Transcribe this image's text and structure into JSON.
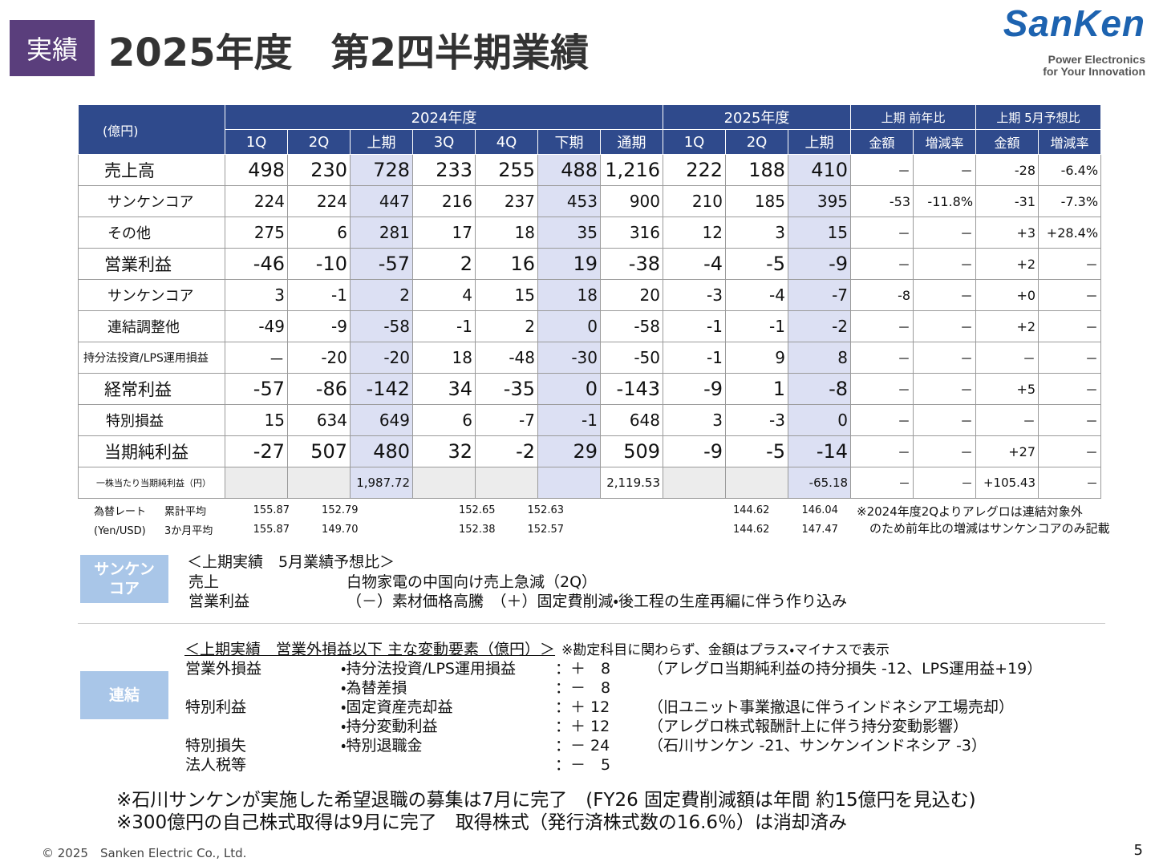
{
  "header": {
    "badge": "実績",
    "title": "2025年度　第2四半期業績",
    "logo": "SanKen",
    "tagline1": "Power Electronics",
    "tagline2": "for Your Innovation"
  },
  "table": {
    "unit": "(億円)",
    "groups": [
      "2024年度",
      "2025年度",
      "上期 前年比",
      "上期 5月予想比"
    ],
    "columns": [
      "1Q",
      "2Q",
      "上期",
      "3Q",
      "4Q",
      "下期",
      "通期",
      "1Q",
      "2Q",
      "上期",
      "金額",
      "増減率",
      "金額",
      "増減率"
    ],
    "rows": [
      {
        "label": "売上高",
        "level": "main",
        "cells": [
          "498",
          "230",
          "728",
          "233",
          "255",
          "488",
          "1,216",
          "222",
          "188",
          "410",
          "－",
          "－",
          "-28",
          "-6.4%"
        ]
      },
      {
        "label": "サンケンコア",
        "level": "sub",
        "cells": [
          "224",
          "224",
          "447",
          "216",
          "237",
          "453",
          "900",
          "210",
          "185",
          "395",
          "-53",
          "-11.8%",
          "-31",
          "-7.3%"
        ]
      },
      {
        "label": "その他",
        "level": "sub",
        "cells": [
          "275",
          "6",
          "281",
          "17",
          "18",
          "35",
          "316",
          "12",
          "3",
          "15",
          "－",
          "－",
          "+3",
          "+28.4%"
        ]
      },
      {
        "label": "営業利益",
        "level": "main",
        "cells": [
          "-46",
          "-10",
          "-57",
          "2",
          "16",
          "19",
          "-38",
          "-4",
          "-5",
          "-9",
          "－",
          "－",
          "+2",
          "－"
        ]
      },
      {
        "label": "サンケンコア",
        "level": "sub",
        "cells": [
          "3",
          "-1",
          "2",
          "4",
          "15",
          "18",
          "20",
          "-3",
          "-4",
          "-7",
          "-8",
          "－",
          "+0",
          "－"
        ]
      },
      {
        "label": "連結調整他",
        "level": "sub",
        "cells": [
          "-49",
          "-9",
          "-58",
          "-1",
          "2",
          "0",
          "-58",
          "-1",
          "-1",
          "-2",
          "－",
          "－",
          "+2",
          "－"
        ]
      },
      {
        "label": "持分法投資/LPS運用損益",
        "level": "small",
        "cells": [
          "－",
          "-20",
          "-20",
          "18",
          "-48",
          "-30",
          "-50",
          "-1",
          "9",
          "8",
          "－",
          "－",
          "－",
          "－"
        ]
      },
      {
        "label": "経常利益",
        "level": "main",
        "cells": [
          "-57",
          "-86",
          "-142",
          "34",
          "-35",
          "0",
          "-143",
          "-9",
          "1",
          "-8",
          "－",
          "－",
          "+5",
          "－"
        ]
      },
      {
        "label": "特別損益",
        "level": "mid",
        "cells": [
          "15",
          "634",
          "649",
          "6",
          "-7",
          "-1",
          "648",
          "3",
          "-3",
          "0",
          "－",
          "－",
          "－",
          "－"
        ]
      },
      {
        "label": "当期純利益",
        "level": "main",
        "cells": [
          "-27",
          "507",
          "480",
          "32",
          "-2",
          "29",
          "509",
          "-9",
          "-5",
          "-14",
          "－",
          "－",
          "+27",
          "－"
        ]
      },
      {
        "label": "一株当たり当期純利益（円）",
        "level": "eps",
        "cells": [
          null,
          null,
          "1,987.72",
          null,
          null,
          null,
          "2,119.53",
          null,
          null,
          "-65.18",
          "－",
          "－",
          "+105.43",
          "－"
        ]
      }
    ]
  },
  "fx": {
    "label1": "為替レート",
    "label2": "(Yen/USD)",
    "rows": [
      {
        "label": "累計平均",
        "cells": [
          "155.87",
          "152.79",
          null,
          "152.65",
          "152.63",
          null,
          null,
          "144.62",
          "146.04"
        ]
      },
      {
        "label": "3か月平均",
        "cells": [
          "155.87",
          "149.70",
          null,
          "152.38",
          "152.57",
          null,
          null,
          "144.62",
          "147.47"
        ]
      }
    ]
  },
  "table_note": [
    "※2024年度2Qよりアレグロは連結対象外",
    "のため前年比の増減はサンケンコアのみ記載"
  ],
  "core": {
    "tag": [
      "サンケン",
      "コア"
    ],
    "heading": "＜上期実績　5月業績予想比＞",
    "items": [
      {
        "label": "売上",
        "text": "白物家電の中国向け売上急減（2Q）"
      },
      {
        "label": "営業利益",
        "text": "（－）素材価格高騰　（＋）固定費削減・後工程の生産再編に伴う作り込み"
      }
    ]
  },
  "consolidated": {
    "tag": "連結",
    "heading": "＜上期実績　営業外損益以下 主な変動要素（億円）＞",
    "note": "※勘定科目に関わらず、金額はプラス・マイナスで表示",
    "rows": [
      {
        "category": "営業外損益",
        "item": "・持分法投資/LPS運用損益",
        "amount": "：＋　8",
        "detail": "（アレグロ当期純利益の持分損失 -12、LPS運用益+19）"
      },
      {
        "category": null,
        "item": "・為替差損",
        "amount": "：－　8",
        "detail": null
      },
      {
        "category": "特別利益",
        "item": "・固定資産売却益",
        "amount": "：＋ 12",
        "detail": "（旧ユニット事業撤退に伴うインドネシア工場売却）"
      },
      {
        "category": null,
        "item": "・持分変動利益",
        "amount": "：＋ 12",
        "detail": "（アレグロ株式報酬計上に伴う持分変動影響）"
      },
      {
        "category": "特別損失",
        "item": "・特別退職金",
        "amount": "：－ 24",
        "detail": "（石川サンケン -21、サンケンインドネシア -3）"
      },
      {
        "category": "法人税等",
        "item": null,
        "amount": "：－　5",
        "detail": null
      }
    ]
  },
  "footnotes": [
    "※石川サンケンが実施した希望退職の募集は7月に完了　(FY26 固定費削減額は年間 約15億円を見込む)",
    "※300億円の自己株式取得は9月に完了　取得株式（発行済株式数の16.6％）は消却済み"
  ],
  "footer": {
    "copyright": "© 2025　Sanken Electric Co., Ltd.",
    "page": "5"
  }
}
